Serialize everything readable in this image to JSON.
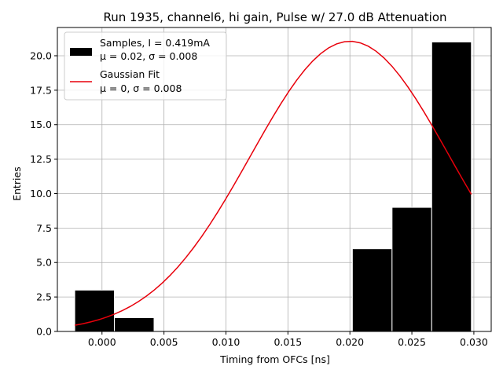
{
  "chart_data": {
    "type": "bar",
    "title": "Run 1935, channel6, hi gain, Pulse w/ 27.0 dB Attenuation",
    "xlabel": "Timing from OFCs [ns]",
    "ylabel": "Entries",
    "xlim": [
      -0.0036,
      0.0314
    ],
    "ylim": [
      0,
      22.05
    ],
    "grid": true,
    "legend_position": "upper-left",
    "x_ticks": [
      {
        "value": 0.0,
        "label": "0.000"
      },
      {
        "value": 0.005,
        "label": "0.005"
      },
      {
        "value": 0.01,
        "label": "0.010"
      },
      {
        "value": 0.015,
        "label": "0.015"
      },
      {
        "value": 0.02,
        "label": "0.020"
      },
      {
        "value": 0.025,
        "label": "0.025"
      },
      {
        "value": 0.03,
        "label": "0.030"
      }
    ],
    "y_ticks": [
      {
        "value": 0,
        "label": "0.0"
      },
      {
        "value": 2.5,
        "label": "2.5"
      },
      {
        "value": 5,
        "label": "5.0"
      },
      {
        "value": 7.5,
        "label": "7.5"
      },
      {
        "value": 10,
        "label": "10.0"
      },
      {
        "value": 12.5,
        "label": "12.5"
      },
      {
        "value": 15,
        "label": "15.0"
      },
      {
        "value": 17.5,
        "label": "17.5"
      },
      {
        "value": 20,
        "label": "20.0"
      }
    ],
    "histogram": {
      "name": "Samples, I = 0.419mA",
      "name_line2": "μ = 0.02, σ = 0.008",
      "color": "#000000",
      "edge_color": "#ffffff",
      "bins": [
        {
          "x0": -0.0022,
          "x1": 0.001,
          "count": 3
        },
        {
          "x0": 0.001,
          "x1": 0.0042,
          "count": 1
        },
        {
          "x0": 0.0042,
          "x1": 0.0074,
          "count": 0
        },
        {
          "x0": 0.0074,
          "x1": 0.0106,
          "count": 0
        },
        {
          "x0": 0.0106,
          "x1": 0.0138,
          "count": 0
        },
        {
          "x0": 0.0138,
          "x1": 0.017,
          "count": 0
        },
        {
          "x0": 0.017,
          "x1": 0.0202,
          "count": 0
        },
        {
          "x0": 0.0202,
          "x1": 0.0234,
          "count": 6
        },
        {
          "x0": 0.0234,
          "x1": 0.0266,
          "count": 9
        },
        {
          "x0": 0.0266,
          "x1": 0.0298,
          "count": 21
        }
      ]
    },
    "fit": {
      "name": "Gaussian Fit",
      "name_line2": "μ = 0, σ = 0.008",
      "color": "#e8000b",
      "amplitude": 21.05,
      "mean": 0.02,
      "sigma": 0.008,
      "x_start": -0.0022,
      "x_end": 0.0298,
      "samples": 51
    }
  }
}
